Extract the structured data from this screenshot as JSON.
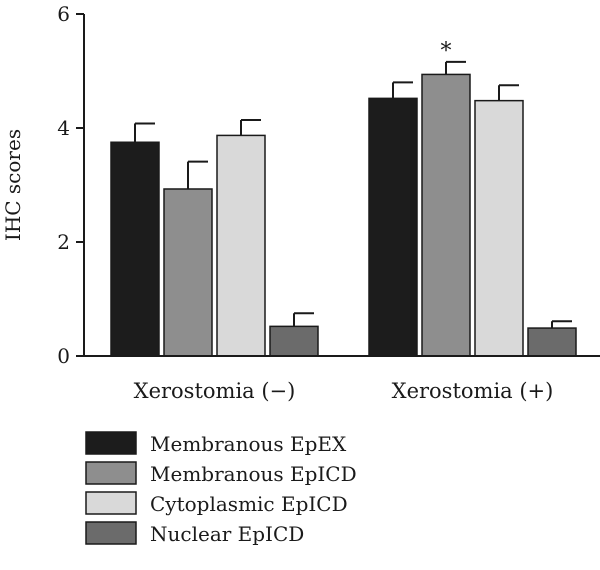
{
  "chart_data": {
    "type": "bar",
    "title": "",
    "xlabel": "",
    "ylabel": "IHC scores",
    "ylim": [
      0,
      6
    ],
    "yticks": [
      0,
      2,
      4,
      6
    ],
    "grid": false,
    "legend_position": "bottom-left",
    "categories": [
      "Xerostomia (−)",
      "Xerostomia (+)"
    ],
    "series": [
      {
        "name": "Membranous EpEX",
        "color": "#1c1c1c",
        "values": [
          3.75,
          4.52
        ],
        "errors": [
          0.33,
          0.28
        ]
      },
      {
        "name": "Membranous EpICD",
        "color": "#8e8e8e",
        "values": [
          2.93,
          4.94
        ],
        "errors": [
          0.48,
          0.22
        ]
      },
      {
        "name": "Cytoplasmic EpICD",
        "color": "#d9d9d9",
        "values": [
          3.87,
          4.48
        ],
        "errors": [
          0.27,
          0.27
        ]
      },
      {
        "name": "Nuclear EpICD",
        "color": "#6b6b6b",
        "values": [
          0.52,
          0.49
        ],
        "errors": [
          0.23,
          0.12
        ]
      }
    ],
    "annotations": [
      {
        "text": "*",
        "category_index": 1,
        "series_index": 1
      }
    ]
  }
}
